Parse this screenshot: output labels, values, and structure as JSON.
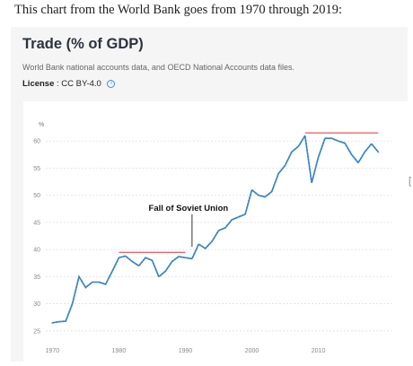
{
  "caption": "This chart from the World Bank goes from 1970 through 2019:",
  "card": {
    "title": "Trade (% of GDP)",
    "source": "World Bank national accounts data, and OECD National Accounts data files.",
    "license_label": "License",
    "license_value": ": CC BY-4.0"
  },
  "icons": {
    "info": "info-circle-icon"
  },
  "colors": {
    "series": "#3a86c4",
    "highlight": "#e03030",
    "grid": "#d8d8d8",
    "annotation": "#333333"
  },
  "stray_mark": "[",
  "chart_data": {
    "type": "line",
    "title": "Trade (% of GDP)",
    "ylabel": "%",
    "xlabel": "",
    "xlim": [
      1969,
      2021
    ],
    "ylim": [
      23,
      64
    ],
    "xticks": [
      1970,
      1980,
      1990,
      2000,
      2010
    ],
    "yticks": [
      25,
      30,
      35,
      40,
      45,
      50,
      55,
      60
    ],
    "grid": true,
    "line_style": "dotted",
    "series": [
      {
        "x": [
          1970,
          1971,
          1972,
          1973,
          1974,
          1975,
          1976,
          1977,
          1978,
          1979,
          1980,
          1981,
          1982,
          1983,
          1984,
          1985,
          1986,
          1987,
          1988,
          1989,
          1990,
          1991,
          1992,
          1993,
          1994,
          1995,
          1996,
          1997,
          1998,
          1999,
          2000,
          2001,
          2002,
          2003,
          2004,
          2005,
          2006,
          2007,
          2008,
          2009,
          2010,
          2011,
          2012,
          2013,
          2014,
          2015,
          2016,
          2017,
          2018,
          2019
        ],
        "y": [
          26.5,
          26.7,
          26.8,
          30,
          35,
          33,
          34,
          34,
          33.6,
          36,
          38.5,
          38.8,
          37.8,
          37,
          38.5,
          38,
          35,
          36,
          37.8,
          38.7,
          38.5,
          38.3,
          41,
          40.2,
          41.5,
          43.5,
          44,
          45.5,
          46,
          46.5,
          51,
          50,
          49.7,
          50.7,
          54,
          55.5,
          58,
          59,
          61,
          52.3,
          57,
          60.5,
          60.5,
          60,
          59.6,
          57.5,
          56,
          58,
          59.5,
          58
        ]
      }
    ],
    "annotations": [
      {
        "text": "Fall of Soviet Union",
        "x": 1991,
        "from_y": 40.5,
        "to_y": 46.5
      }
    ],
    "reference_lines": [
      {
        "y": 39.5,
        "x_start": 1980,
        "x_end": 1990
      },
      {
        "y": 61.5,
        "x_start": 2008,
        "x_end": 2019
      }
    ]
  }
}
